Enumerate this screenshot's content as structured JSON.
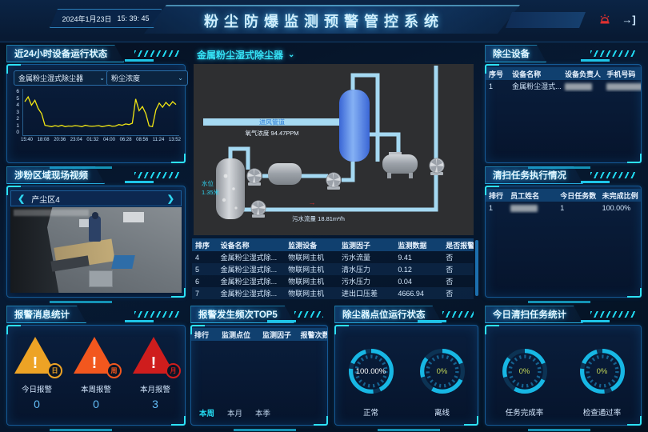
{
  "colors": {
    "accent": "#1fc9ea",
    "chart_line": "#f2e713",
    "alarm_day": "#eda325",
    "alarm_week": "#f2571e",
    "alarm_month": "#cf1d1d",
    "gauge_green": "#c6d957"
  },
  "header": {
    "date": "2024年1月23日",
    "time": "15: 39: 45",
    "title": "粉尘防爆监测预警管控系统",
    "exit_glyph": "→]"
  },
  "icons": {
    "dropdown": "⌄",
    "prev": "❮",
    "next": "❯"
  },
  "device_status_panel": {
    "title": "近24小时设备运行状态",
    "device_select": "金属粉尘湿式除尘器",
    "metric_select": "粉尘浓度"
  },
  "chart_data": {
    "type": "line",
    "title": "近24小时设备运行状态",
    "series": [
      {
        "name": "粉尘浓度",
        "values": [
          4.6,
          5.3,
          4.1,
          4.8,
          3.6,
          2.9,
          1.2,
          1.1,
          1.0,
          1.15,
          1.05,
          1.2,
          1.0,
          1.1,
          1.05,
          1.15,
          1.1,
          1.0,
          1.2,
          1.1,
          1.05,
          1.1,
          1.15,
          1.0,
          1.1,
          1.2,
          1.05,
          1.1,
          1.3,
          1.2,
          1.4,
          1.3,
          1.5,
          5.0,
          3.3,
          3.9,
          2.9,
          1.1,
          1.0,
          3.4,
          4.4,
          3.8,
          4.5,
          4.0,
          4.6,
          4.2
        ]
      }
    ],
    "x_labels": [
      "15:40",
      "18:08",
      "20:36",
      "23:04",
      "01:32",
      "04:00",
      "06:28",
      "08:56",
      "11:24",
      "13:52"
    ],
    "y_ticks": [
      0,
      1,
      2,
      3,
      4,
      5,
      6
    ],
    "ylim": [
      0,
      6
    ],
    "xlabel": "",
    "ylabel": "",
    "grid": false,
    "legend": "none",
    "line_color": "#f2e713"
  },
  "video_panel": {
    "title": "涉粉区域现场视频",
    "camera": "产尘区4"
  },
  "alarm_stats_panel": {
    "title": "报警消息统计",
    "items": [
      {
        "badge": "日",
        "label": "今日报警",
        "value": "0"
      },
      {
        "badge": "周",
        "label": "本周报警",
        "value": "0"
      },
      {
        "badge": "月",
        "label": "本月报警",
        "value": "3"
      }
    ]
  },
  "process_panel": {
    "title": "金属粉尘湿式除尘器",
    "pipe_label": "进风管道",
    "oxygen_label": "氧气浓度 94.47PPM",
    "water_level_label": "水位",
    "water_level_value": "1.35米",
    "flow_label": "污水流量 18.81m³/h",
    "flow_arrow": "→"
  },
  "monitor_table": {
    "headers": [
      "排序",
      "设备名称",
      "监测设备",
      "监测因子",
      "监测数据",
      "是否报警"
    ],
    "rows": [
      [
        "4",
        "金属粉尘湿式除...",
        "物联网主机",
        "污水流量",
        "9.41",
        "否"
      ],
      [
        "5",
        "金属粉尘湿式除...",
        "物联网主机",
        "清水压力",
        "0.12",
        "否"
      ],
      [
        "6",
        "金属粉尘湿式除...",
        "物联网主机",
        "污水压力",
        "0.04",
        "否"
      ],
      [
        "7",
        "金属粉尘湿式除...",
        "物联网主机",
        "进出口压差",
        "4666.94",
        "否"
      ]
    ]
  },
  "alarm_freq_panel": {
    "title": "报警发生频次TOP5",
    "headers": [
      "排行",
      "监测点位",
      "监测因子",
      "报警次数"
    ],
    "rows": [],
    "tabs": [
      "本周",
      "本月",
      "本季"
    ]
  },
  "dust_status_panel": {
    "title": "除尘器点位运行状态",
    "gauges": [
      {
        "value": "100.00%",
        "label": "正常"
      },
      {
        "value": "0%",
        "label": "离线"
      }
    ]
  },
  "dust_device_panel": {
    "title": "除尘设备",
    "headers": [
      "序号",
      "设备名称",
      "设备负责人",
      "手机号码"
    ],
    "rows": [
      {
        "no": "1",
        "name": "金属粉尘湿式..."
      }
    ]
  },
  "clean_task_panel": {
    "title": "清扫任务执行情况",
    "headers": [
      "排行",
      "员工姓名",
      "今日任务数",
      "未完成比例"
    ],
    "rows": [
      {
        "rank": "1",
        "tasks": "1",
        "unfinished": "100.00%"
      }
    ]
  },
  "today_clean_panel": {
    "title": "今日清扫任务统计",
    "gauges": [
      {
        "value": "0%",
        "label": "任务完成率"
      },
      {
        "value": "0%",
        "label": "检查通过率"
      }
    ]
  }
}
